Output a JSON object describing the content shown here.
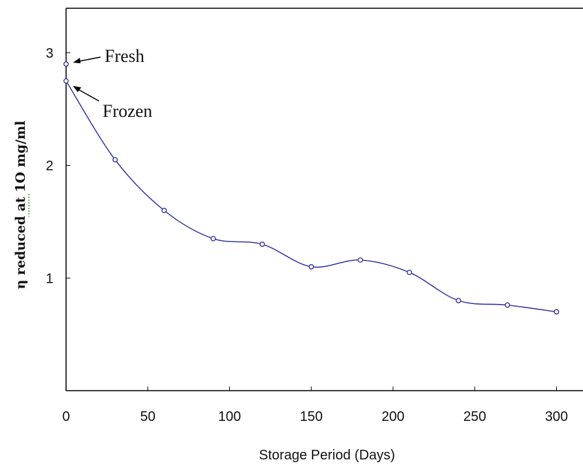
{
  "chart_data": {
    "type": "line",
    "xlabel": "Storage Period (Days)",
    "ylabel": "η reduced at 1O mg/ml",
    "xlim": [
      0,
      315
    ],
    "ylim": [
      0,
      3.5
    ],
    "xticks": [
      0,
      50,
      100,
      150,
      200,
      250,
      300
    ],
    "xtick_labels": [
      "0",
      "50",
      "100",
      "150",
      "200",
      "250",
      "300"
    ],
    "yticks": [
      1,
      2,
      3
    ],
    "ytick_labels": [
      "1",
      "2",
      "3"
    ],
    "grid": false,
    "line_color": "#2b2b9e",
    "series": [
      {
        "x": [
          0,
          30,
          60,
          90,
          120,
          150,
          180,
          210,
          240,
          270,
          300
        ],
        "y": [
          2.75,
          2.05,
          1.6,
          1.35,
          1.3,
          1.1,
          1.16,
          1.05,
          0.8,
          0.76,
          0.7
        ]
      }
    ],
    "extra_points": [
      {
        "x": 0,
        "y": 2.9
      }
    ],
    "annotations": [
      {
        "text": "Fresh",
        "x": 0,
        "y": 2.9
      },
      {
        "text": "Frozen",
        "x": 0,
        "y": 2.75
      }
    ]
  }
}
